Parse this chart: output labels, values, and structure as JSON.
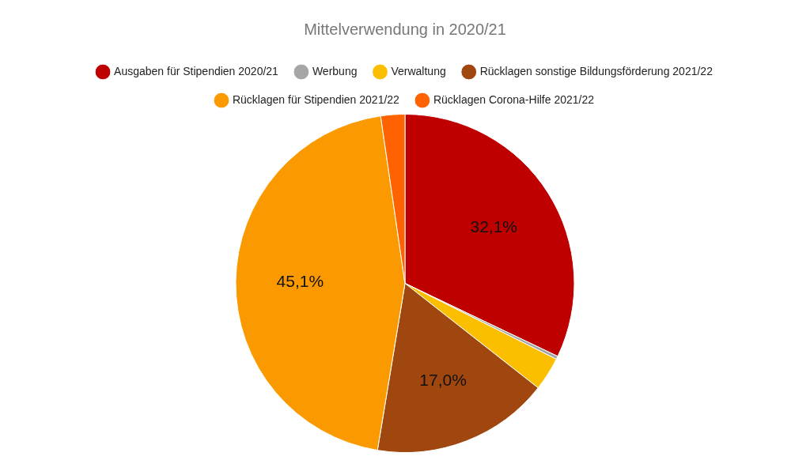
{
  "chart_data": {
    "type": "pie",
    "title": "Mittelverwendung in 2020/21",
    "categories": [
      "Ausgaben für Stipendien 2020/21",
      "Werbung",
      "Verwaltung",
      "Rücklagen sonstige Bildungsförderung 2021/22",
      "Rücklagen für Stipendien 2021/22",
      "Rücklagen Corona-Hilfe 2021/22"
    ],
    "values": [
      32.1,
      0.3,
      3.2,
      17.0,
      45.1,
      2.3
    ],
    "colors": [
      "#bf0000",
      "#a6a6a6",
      "#fcbf00",
      "#a0470f",
      "#fb9a00",
      "#ff6200"
    ],
    "value_labels": [
      "32,1%",
      null,
      null,
      "17,0%",
      "45,1%",
      null
    ],
    "legend": "top"
  }
}
